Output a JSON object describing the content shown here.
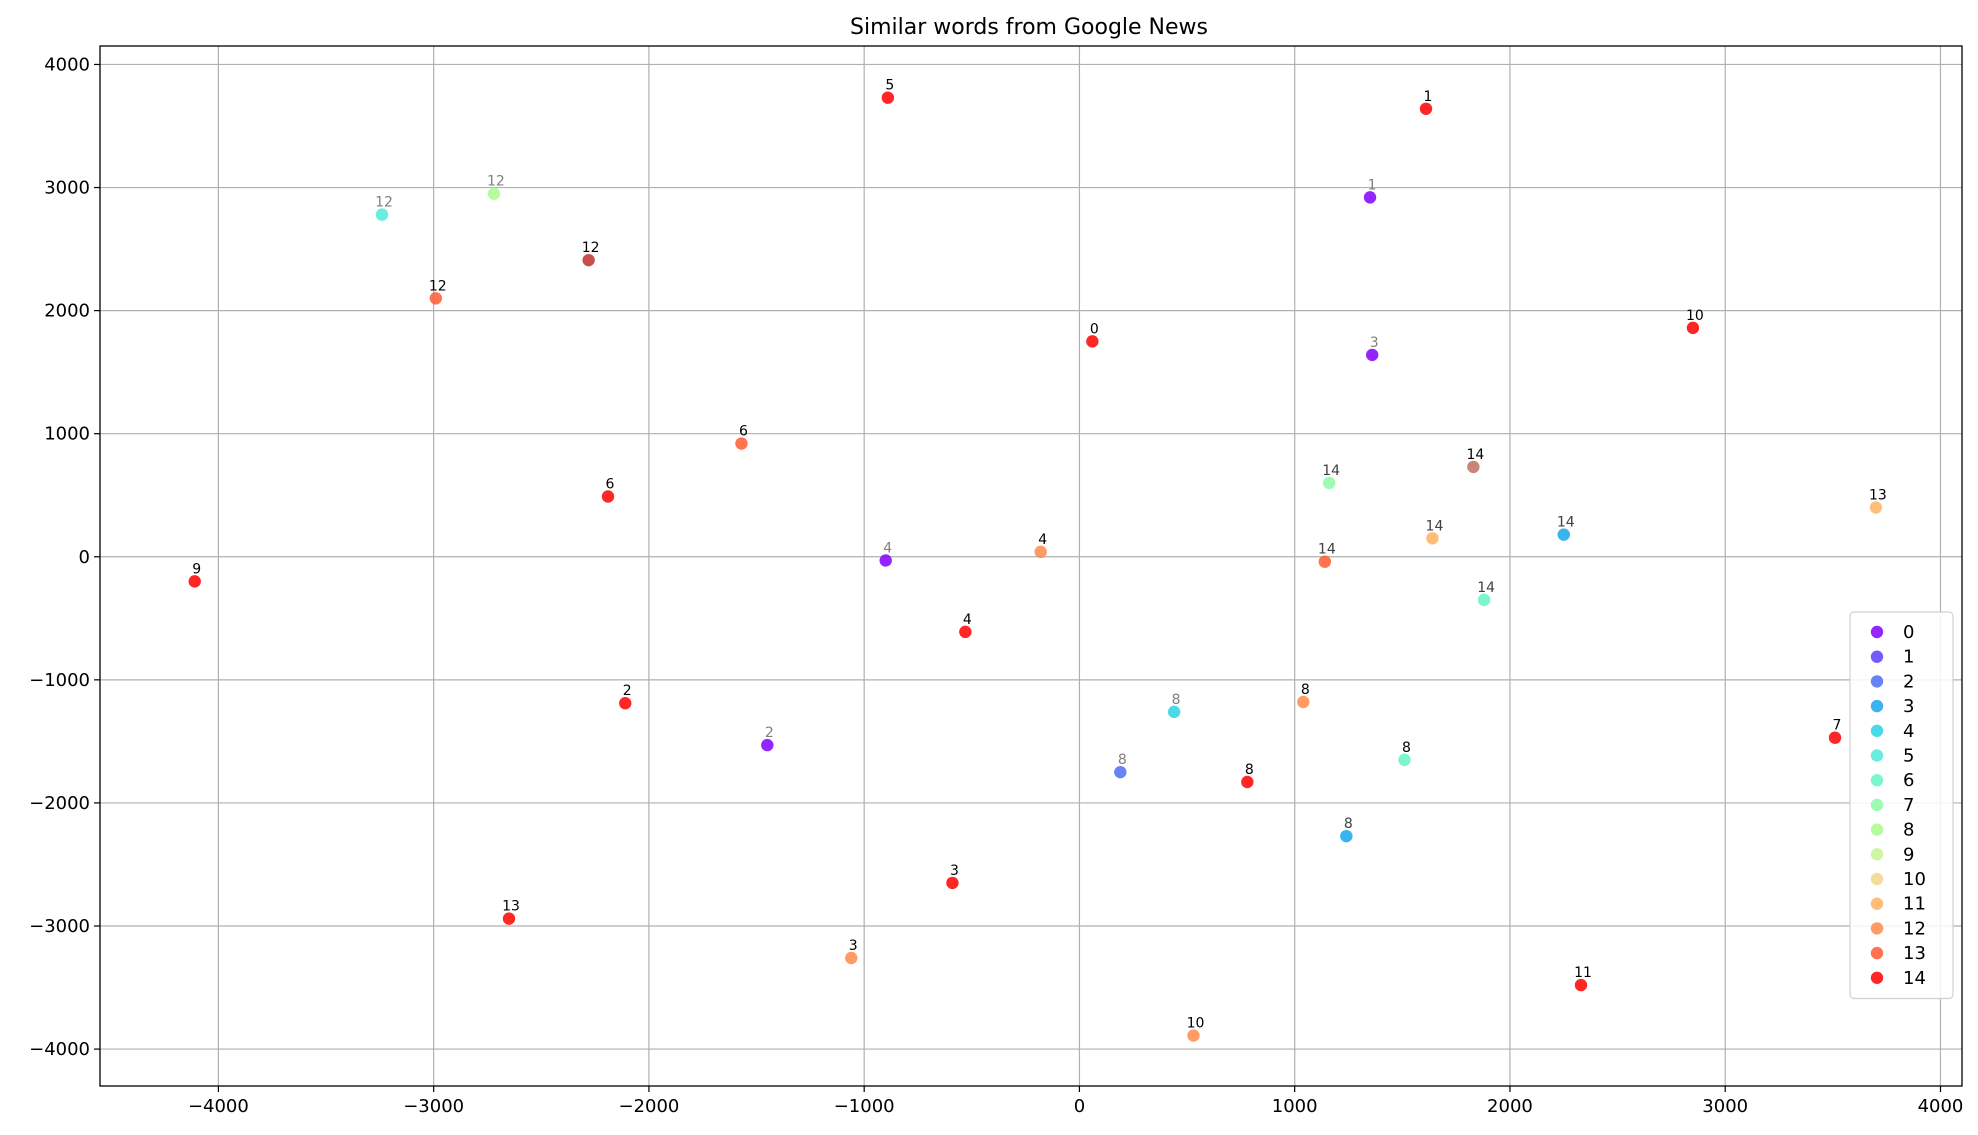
{
  "chart_data": {
    "type": "scatter",
    "title": "Similar words from Google News",
    "xlabel": "",
    "ylabel": "",
    "xlim": [
      -4550,
      4100
    ],
    "ylim": [
      -4300,
      4150
    ],
    "xticks": [
      -4000,
      -3000,
      -2000,
      -1000,
      0,
      1000,
      2000,
      3000,
      4000
    ],
    "yticks": [
      -4000,
      -3000,
      -2000,
      -1000,
      0,
      1000,
      2000,
      3000,
      4000
    ],
    "xtick_labels": [
      "−4000",
      "−3000",
      "−2000",
      "−1000",
      "0",
      "1000",
      "2000",
      "3000",
      "4000"
    ],
    "ytick_labels": [
      "−4000",
      "−3000",
      "−2000",
      "−1000",
      "0",
      "1000",
      "2000",
      "3000",
      "4000"
    ],
    "grid": true,
    "legend_position": "lower-right",
    "series": [
      {
        "name": "0",
        "color": "#8000ff",
        "points": [
          {
            "x": 1350,
            "y": 2920,
            "label": "1",
            "label_color": "#808080"
          },
          {
            "x": 1360,
            "y": 1640,
            "label": "3",
            "label_color": "#808080"
          },
          {
            "x": -900,
            "y": -30,
            "label": "4",
            "label_color": "#808080"
          },
          {
            "x": -1450,
            "y": -1530,
            "label": "2",
            "label_color": "#808080"
          }
        ]
      },
      {
        "name": "1",
        "color": "#5a3ff8",
        "points": []
      },
      {
        "name": "2",
        "color": "#4c6ef3",
        "points": [
          {
            "x": 190,
            "y": -1750,
            "label": "8",
            "label_color": "#808080"
          }
        ]
      },
      {
        "name": "3",
        "color": "#16a7ec",
        "points": [
          {
            "x": 2250,
            "y": 180,
            "label": "14",
            "label_color": "#404040"
          },
          {
            "x": 1240,
            "y": -2270,
            "label": "8",
            "label_color": "#404040"
          }
        ]
      },
      {
        "name": "4",
        "color": "#2bd1e4",
        "points": [
          {
            "x": 440,
            "y": -1260,
            "label": "8",
            "label_color": "#808080"
          }
        ]
      },
      {
        "name": "5",
        "color": "#50e9dc",
        "points": [
          {
            "x": -3240,
            "y": 2780,
            "label": "12",
            "label_color": "#808080"
          }
        ]
      },
      {
        "name": "6",
        "color": "#64f4c4",
        "points": [
          {
            "x": 1880,
            "y": -350,
            "label": "14",
            "label_color": "#404040"
          },
          {
            "x": 1510,
            "y": -1650,
            "label": "8",
            "label_color": "#000000"
          }
        ]
      },
      {
        "name": "7",
        "color": "#8cfca4",
        "points": [
          {
            "x": 1160,
            "y": 600,
            "label": "14",
            "label_color": "#404040"
          }
        ]
      },
      {
        "name": "8",
        "color": "#a9fc8c",
        "points": [
          {
            "x": -2720,
            "y": 2950,
            "label": "12",
            "label_color": "#808080"
          }
        ]
      },
      {
        "name": "9",
        "color": "#c6f48f",
        "points": []
      },
      {
        "name": "10",
        "color": "#f1d68b",
        "points": []
      },
      {
        "name": "11",
        "color": "#ffb360",
        "points": [
          {
            "x": 1640,
            "y": 150,
            "label": "14",
            "label_color": "#404040"
          },
          {
            "x": 3700,
            "y": 400,
            "label": "13",
            "label_color": "#000000"
          }
        ]
      },
      {
        "name": "12",
        "color": "#ff8a4a",
        "points": [
          {
            "x": 1040,
            "y": -1180,
            "label": "8",
            "label_color": "#000000"
          },
          {
            "x": -180,
            "y": 40,
            "label": "4",
            "label_color": "#000000"
          },
          {
            "x": -1060,
            "y": -3260,
            "label": "3",
            "label_color": "#000000"
          },
          {
            "x": 530,
            "y": -3890,
            "label": "10",
            "label_color": "#000000"
          }
        ]
      },
      {
        "name": "13",
        "color": "#ff5a32",
        "points": [
          {
            "x": -2990,
            "y": 2100,
            "label": "12",
            "label_color": "#000000"
          },
          {
            "x": -1570,
            "y": 920,
            "label": "6",
            "label_color": "#000000"
          },
          {
            "x": 1140,
            "y": -40,
            "label": "14",
            "label_color": "#404040"
          }
        ]
      },
      {
        "name": "14",
        "color": "#ff0000",
        "points": [
          {
            "x": -890,
            "y": 3730,
            "label": "5",
            "label_color": "#000000"
          },
          {
            "x": 1610,
            "y": 3640,
            "label": "1",
            "label_color": "#000000"
          },
          {
            "x": 60,
            "y": 1750,
            "label": "0",
            "label_color": "#000000"
          },
          {
            "x": 2850,
            "y": 1860,
            "label": "10",
            "label_color": "#000000"
          },
          {
            "x": -2190,
            "y": 490,
            "label": "6",
            "label_color": "#000000"
          },
          {
            "x": -4110,
            "y": -200,
            "label": "9",
            "label_color": "#000000"
          },
          {
            "x": -530,
            "y": -610,
            "label": "4",
            "label_color": "#000000"
          },
          {
            "x": -2110,
            "y": -1190,
            "label": "2",
            "label_color": "#000000"
          },
          {
            "x": 780,
            "y": -1830,
            "label": "8",
            "label_color": "#000000"
          },
          {
            "x": 3510,
            "y": -1470,
            "label": "7",
            "label_color": "#000000"
          },
          {
            "x": -590,
            "y": -2650,
            "label": "3",
            "label_color": "#000000"
          },
          {
            "x": -2650,
            "y": -2940,
            "label": "13",
            "label_color": "#000000"
          },
          {
            "x": 2330,
            "y": -3480,
            "label": "11",
            "label_color": "#000000"
          },
          {
            "x": -2280,
            "y": 2410,
            "label": "12",
            "label_color": "#000000",
            "color": "#c03030"
          },
          {
            "x": 1830,
            "y": 730,
            "label": "14",
            "label_color": "#000000",
            "color": "#c07060"
          }
        ]
      }
    ]
  }
}
